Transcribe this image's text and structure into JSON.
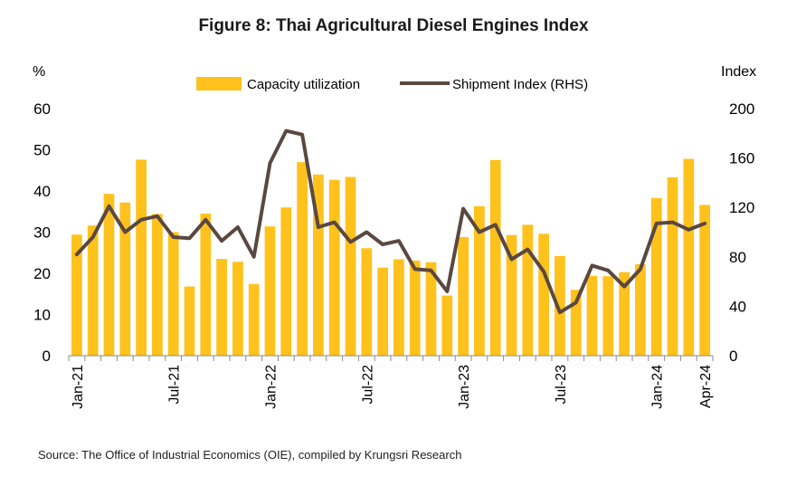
{
  "title": "Figure 8: Thai Agricultural Diesel Engines Index",
  "source": "Source: The Office of Industrial Economics (OIE), compiled by Krungsri Research",
  "chart_data": {
    "type": "bar",
    "combo": "bar + line (secondary axis)",
    "title": "Figure 8: Thai Agricultural Diesel Engines Index",
    "ylabel_left": "%",
    "ylabel_right": "Index",
    "ylim_left": [
      0,
      60
    ],
    "yticks_left": [
      0,
      10,
      20,
      30,
      40,
      50,
      60
    ],
    "ylim_right": [
      0,
      200
    ],
    "yticks_right": [
      0,
      40,
      80,
      120,
      160,
      200
    ],
    "grid": false,
    "legend_position": "top-center",
    "colors": {
      "bar": "#FFC21C",
      "line": "#5A4840"
    },
    "xtick_labels": [
      "Jan-21",
      "Jul-21",
      "Jan-22",
      "Jul-22",
      "Jan-23",
      "Jul-23",
      "Jan-24",
      "Apr-24"
    ],
    "categories": [
      "Jan-21",
      "Feb-21",
      "Mar-21",
      "Apr-21",
      "May-21",
      "Jun-21",
      "Jul-21",
      "Aug-21",
      "Sep-21",
      "Oct-21",
      "Nov-21",
      "Dec-21",
      "Jan-22",
      "Feb-22",
      "Mar-22",
      "Apr-22",
      "May-22",
      "Jun-22",
      "Jul-22",
      "Aug-22",
      "Sep-22",
      "Oct-22",
      "Nov-22",
      "Dec-22",
      "Jan-23",
      "Feb-23",
      "Mar-23",
      "Apr-23",
      "May-23",
      "Jun-23",
      "Jul-23",
      "Aug-23",
      "Sep-23",
      "Oct-23",
      "Nov-23",
      "Dec-23",
      "Jan-24",
      "Feb-24",
      "Mar-24",
      "Apr-24"
    ],
    "series": [
      {
        "name": "Capacity utilization",
        "type": "bar",
        "axis": "left",
        "values": [
          29.4,
          31.6,
          39.3,
          37.2,
          47.6,
          34.4,
          30.0,
          16.8,
          34.5,
          23.5,
          22.8,
          17.4,
          31.4,
          36.0,
          47.0,
          44.0,
          42.7,
          43.4,
          26.1,
          21.4,
          23.4,
          23.1,
          22.7,
          14.6,
          28.8,
          36.3,
          47.5,
          29.3,
          31.8,
          29.6,
          24.2,
          16.0,
          19.4,
          19.3,
          20.3,
          22.2,
          38.3,
          43.3,
          47.8,
          36.6
        ]
      },
      {
        "name": "Shipment Index (RHS)",
        "type": "line",
        "axis": "right",
        "values": [
          82,
          96,
          121,
          100,
          110,
          113,
          96,
          95,
          110,
          93,
          104,
          80,
          156,
          182,
          179,
          104,
          108,
          92,
          100,
          90,
          93,
          70,
          69,
          52,
          119,
          100,
          106,
          78,
          86,
          68,
          35,
          43,
          73,
          69,
          56,
          70,
          107,
          108,
          102,
          107
        ]
      }
    ]
  }
}
